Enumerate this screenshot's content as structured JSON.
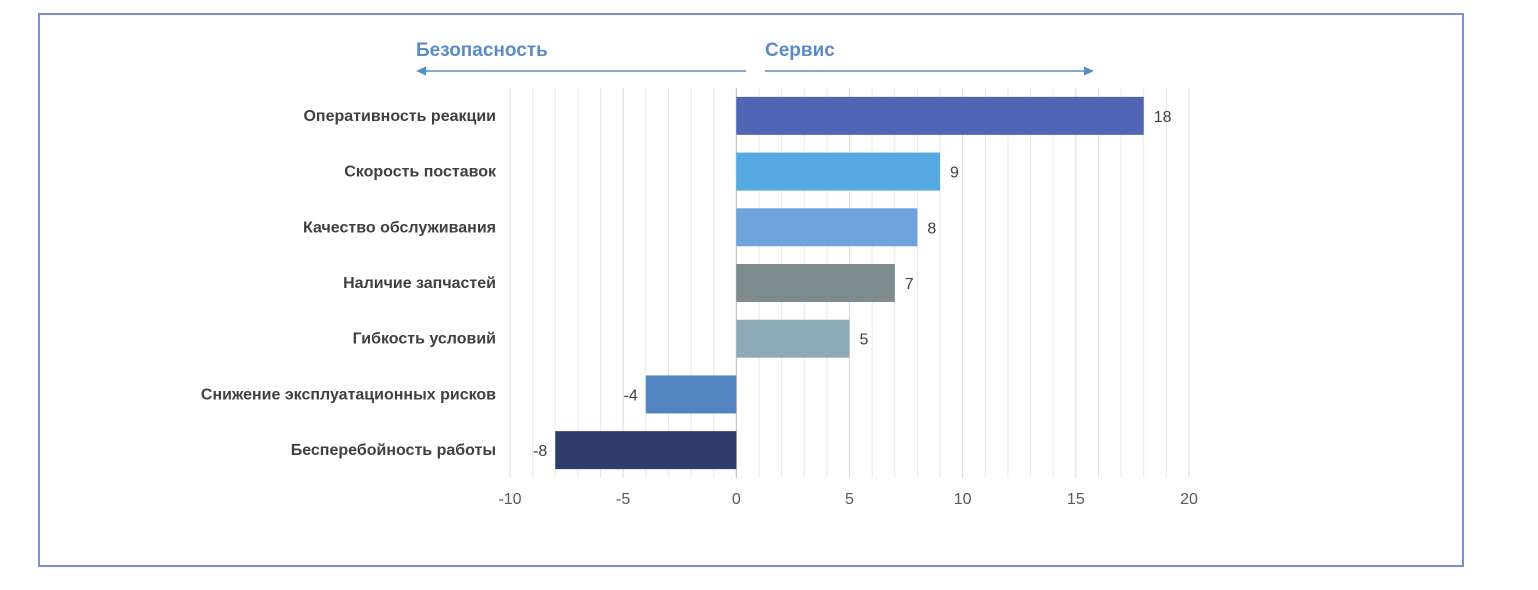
{
  "chart_data": {
    "type": "bar",
    "orientation": "horizontal",
    "direction_labels": {
      "left": "Безопасность",
      "right": "Сервис"
    },
    "categories": [
      "Оперативность реакции",
      "Скорость поставок",
      "Качество обслуживания",
      "Наличие запчастей",
      "Гибкость условий",
      "Снижение эксплуатационных рисков",
      "Бесперебойность работы"
    ],
    "values": [
      18,
      9,
      8,
      7,
      5,
      -4,
      -8
    ],
    "value_labels": [
      "18",
      "9",
      "8",
      "7",
      "5",
      "-4",
      "-8"
    ],
    "colors": [
      "#5066b5",
      "#56a9e0",
      "#6fa3dc",
      "#7f8c8d",
      "#8eabb5",
      "#5184c0",
      "#2f3d6e"
    ],
    "xlim": [
      -10,
      20
    ],
    "xticks": [
      -10,
      -5,
      0,
      5,
      10,
      15,
      20
    ],
    "xtick_labels": [
      "-10",
      "-5",
      "0",
      "5",
      "10",
      "15",
      "20"
    ],
    "minor_step": 1,
    "grid": true,
    "arrow_color": "#5b8bc6",
    "grid_color": "#e8e8e8",
    "axis_color": "#bfbfbf"
  }
}
